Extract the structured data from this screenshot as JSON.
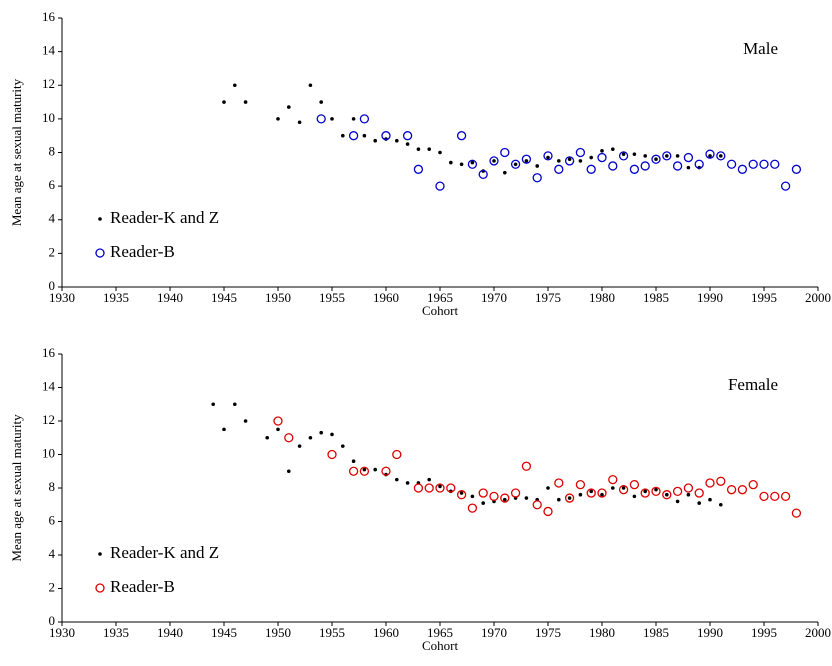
{
  "chart_data": [
    {
      "type": "scatter",
      "annotation": "Male",
      "xlabel": "Cohort",
      "ylabel": "Mean age at sexual maturity",
      "xlim": [
        1930,
        2000
      ],
      "xticks": [
        1930,
        1935,
        1940,
        1945,
        1950,
        1955,
        1960,
        1965,
        1970,
        1975,
        1980,
        1985,
        1990,
        1995,
        2000
      ],
      "ylim": [
        0,
        16
      ],
      "yticks": [
        0,
        2,
        4,
        6,
        8,
        10,
        12,
        14,
        16
      ],
      "legend": "lower left",
      "series": [
        {
          "name": "Reader-K and Z",
          "color": "#000000",
          "marker": "dot",
          "x": [
            1945,
            1946,
            1947,
            1950,
            1951,
            1952,
            1953,
            1954,
            1955,
            1956,
            1957,
            1958,
            1959,
            1960,
            1961,
            1962,
            1963,
            1964,
            1965,
            1966,
            1967,
            1968,
            1969,
            1970,
            1971,
            1972,
            1973,
            1974,
            1975,
            1976,
            1977,
            1978,
            1979,
            1980,
            1981,
            1982,
            1983,
            1984,
            1985,
            1986,
            1987,
            1988,
            1989,
            1990,
            1991
          ],
          "values": [
            11,
            12,
            11,
            10,
            10.7,
            9.8,
            12,
            11,
            10,
            9,
            10,
            9,
            8.7,
            8.8,
            8.7,
            8.5,
            8.2,
            8.2,
            8,
            7.4,
            7.3,
            7.4,
            6.9,
            7.5,
            6.8,
            7.3,
            7.5,
            7.2,
            7.7,
            7.5,
            7.6,
            7.5,
            7.7,
            8.1,
            8.2,
            7.9,
            7.9,
            7.8,
            7.6,
            7.8,
            7.8,
            7.1,
            7.1,
            7.8,
            7.8
          ]
        },
        {
          "name": "Reader-B",
          "color": "#0000cc",
          "marker": "circle",
          "x": [
            1954,
            1957,
            1958,
            1960,
            1962,
            1963,
            1965,
            1967,
            1968,
            1969,
            1970,
            1971,
            1972,
            1973,
            1974,
            1975,
            1976,
            1977,
            1978,
            1979,
            1980,
            1981,
            1982,
            1983,
            1984,
            1985,
            1986,
            1987,
            1988,
            1989,
            1990,
            1991,
            1992,
            1993,
            1994,
            1995,
            1996,
            1997,
            1998
          ],
          "values": [
            10,
            9,
            10,
            9,
            9,
            7,
            6,
            9,
            7.3,
            6.7,
            7.5,
            8,
            7.3,
            7.6,
            6.5,
            7.8,
            7,
            7.5,
            8,
            7,
            7.7,
            7.2,
            7.8,
            7,
            7.2,
            7.6,
            7.8,
            7.2,
            7.7,
            7.3,
            7.9,
            7.8,
            7.3,
            7,
            7.3,
            7.3,
            7.3,
            6,
            7
          ]
        }
      ]
    },
    {
      "type": "scatter",
      "annotation": "Female",
      "xlabel": "Cohort",
      "ylabel": "Mean age at sexual maturity",
      "xlim": [
        1930,
        2000
      ],
      "xticks": [
        1930,
        1935,
        1940,
        1945,
        1950,
        1955,
        1960,
        1965,
        1970,
        1975,
        1980,
        1985,
        1990,
        1995,
        2000
      ],
      "ylim": [
        0,
        16
      ],
      "yticks": [
        0,
        2,
        4,
        6,
        8,
        10,
        12,
        14,
        16
      ],
      "legend": "lower left",
      "series": [
        {
          "name": "Reader-K and Z",
          "color": "#000000",
          "marker": "dot",
          "x": [
            1944,
            1945,
            1946,
            1947,
            1949,
            1950,
            1951,
            1952,
            1953,
            1954,
            1955,
            1956,
            1957,
            1958,
            1959,
            1960,
            1961,
            1962,
            1963,
            1964,
            1965,
            1966,
            1967,
            1968,
            1969,
            1970,
            1971,
            1972,
            1973,
            1974,
            1975,
            1976,
            1977,
            1978,
            1979,
            1980,
            1981,
            1982,
            1983,
            1984,
            1985,
            1986,
            1987,
            1988,
            1989,
            1990,
            1991
          ],
          "values": [
            13,
            11.5,
            13,
            12,
            11,
            11.5,
            9,
            10.5,
            11,
            11.3,
            11.2,
            10.5,
            9.6,
            9.1,
            9.1,
            8.8,
            8.5,
            8.3,
            8.3,
            8.5,
            8.1,
            7.8,
            7.7,
            7.5,
            7.1,
            7.2,
            7.3,
            7.4,
            7.4,
            7.3,
            8,
            7.3,
            7.4,
            7.6,
            7.8,
            7.6,
            8,
            8,
            7.5,
            7.8,
            7.9,
            7.6,
            7.2,
            7.6,
            7.1,
            7.3,
            7
          ]
        },
        {
          "name": "Reader-B",
          "color": "#dd0000",
          "marker": "circle",
          "x": [
            1950,
            1951,
            1955,
            1957,
            1958,
            1960,
            1961,
            1963,
            1964,
            1965,
            1966,
            1967,
            1968,
            1969,
            1970,
            1971,
            1972,
            1973,
            1974,
            1975,
            1976,
            1977,
            1978,
            1979,
            1980,
            1981,
            1982,
            1983,
            1984,
            1985,
            1986,
            1987,
            1988,
            1989,
            1990,
            1991,
            1992,
            1993,
            1994,
            1995,
            1996,
            1997,
            1998
          ],
          "values": [
            12,
            11,
            10,
            9,
            9,
            9,
            10,
            8,
            8,
            8,
            8,
            7.6,
            6.8,
            7.7,
            7.5,
            7.4,
            7.7,
            9.3,
            7,
            6.6,
            8.3,
            7.4,
            8.2,
            7.7,
            7.7,
            8.5,
            7.9,
            8.2,
            7.7,
            7.8,
            7.6,
            7.8,
            8,
            7.7,
            8.3,
            8.4,
            7.9,
            7.9,
            8.2,
            7.5,
            7.5,
            7.5,
            6.5
          ]
        }
      ]
    }
  ]
}
